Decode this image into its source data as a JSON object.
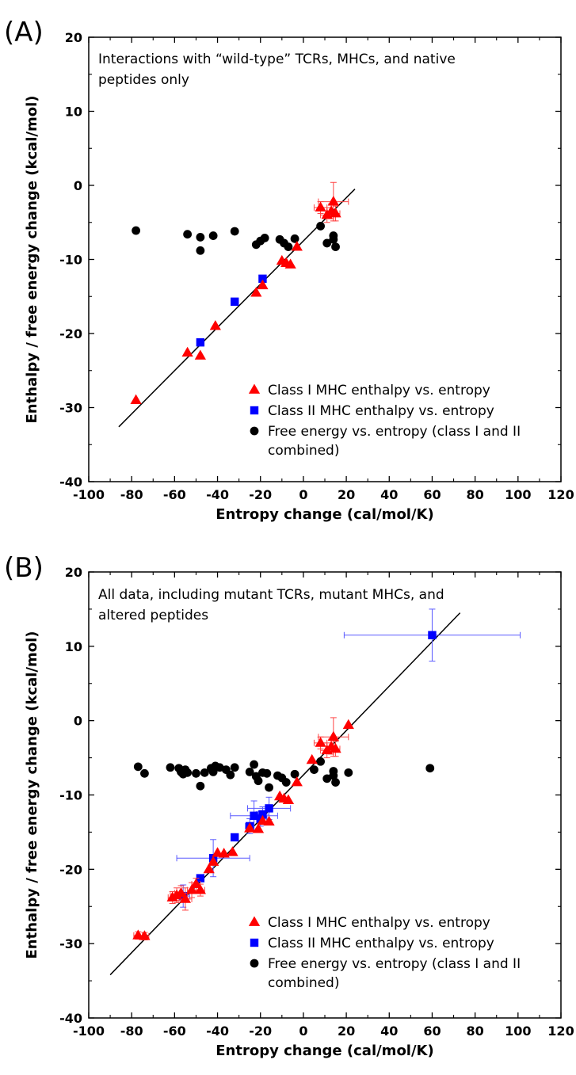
{
  "chart_data": [
    {
      "type": "scatter",
      "panel_label": "(A)",
      "note_lines": [
        "Interactions with “wild-type” TCRs, MHCs, and native",
        "peptides only"
      ],
      "xlabel": "Entropy change (cal/mol/K)",
      "ylabel": "Enthalpy / free energy change (kcal/mol)",
      "xlim": [
        -100,
        120
      ],
      "ylim": [
        -40,
        20
      ],
      "xticks": [
        -100,
        -80,
        -60,
        -40,
        -20,
        0,
        20,
        40,
        60,
        80,
        100,
        120
      ],
      "yticks": [
        -40,
        -30,
        -20,
        -10,
        0,
        10,
        20
      ],
      "legend_position": "bottom-right",
      "fit_line": {
        "x": [
          -86,
          24
        ],
        "y": [
          -32.6,
          -0.5
        ]
      },
      "series": [
        {
          "name": "Class I MHC enthalpy vs. entropy",
          "marker": "triangle",
          "color": "#ff0000",
          "points": [
            {
              "x": -78,
              "y": -29
            },
            {
              "x": -54,
              "y": -22.6
            },
            {
              "x": -48,
              "y": -23
            },
            {
              "x": -41,
              "y": -19
            },
            {
              "x": -22,
              "y": -14.5
            },
            {
              "x": -19,
              "y": -13.5
            },
            {
              "x": -10,
              "y": -10.2
            },
            {
              "x": -8,
              "y": -10.5
            },
            {
              "x": -6,
              "y": -10.7
            },
            {
              "x": -3,
              "y": -8.3
            },
            {
              "x": 8,
              "y": -3,
              "xerr": 3,
              "yerr": 0.8
            },
            {
              "x": 11,
              "y": -4,
              "xerr": 3,
              "yerr": 1
            },
            {
              "x": 13,
              "y": -3.5,
              "xerr": 2,
              "yerr": 1
            },
            {
              "x": 14,
              "y": -2.2,
              "xerr": 7,
              "yerr": 2.6
            },
            {
              "x": 15,
              "y": -3.8,
              "xerr": 2,
              "yerr": 1
            }
          ]
        },
        {
          "name": "Class II MHC enthalpy vs. entropy",
          "marker": "square",
          "color": "#0000ff",
          "points": [
            {
              "x": -48,
              "y": -21.2
            },
            {
              "x": -32,
              "y": -15.7
            },
            {
              "x": -19,
              "y": -12.6
            }
          ]
        },
        {
          "name": "Free energy vs. entropy (class I and II combined)",
          "marker": "circle",
          "color": "#000000",
          "points": [
            {
              "x": -78,
              "y": -6.1
            },
            {
              "x": -54,
              "y": -6.6
            },
            {
              "x": -48,
              "y": -7.0
            },
            {
              "x": -48,
              "y": -8.8
            },
            {
              "x": -42,
              "y": -6.8
            },
            {
              "x": -32,
              "y": -6.2
            },
            {
              "x": -22,
              "y": -8.0
            },
            {
              "x": -20,
              "y": -7.5
            },
            {
              "x": -18,
              "y": -7.1
            },
            {
              "x": -11,
              "y": -7.3
            },
            {
              "x": -9,
              "y": -7.8
            },
            {
              "x": -7,
              "y": -8.3
            },
            {
              "x": -4,
              "y": -7.2
            },
            {
              "x": 8,
              "y": -5.5
            },
            {
              "x": 11,
              "y": -7.8
            },
            {
              "x": 14,
              "y": -6.8
            },
            {
              "x": 14,
              "y": -7.3
            },
            {
              "x": 15,
              "y": -8.3
            }
          ]
        }
      ]
    },
    {
      "type": "scatter",
      "panel_label": "(B)",
      "note_lines": [
        "All data, including mutant TCRs, mutant MHCs, and",
        "altered peptides"
      ],
      "xlabel": "Entropy change (cal/mol/K)",
      "ylabel": "Enthalpy / free energy change (kcal/mol)",
      "xlim": [
        -100,
        120
      ],
      "ylim": [
        -40,
        20
      ],
      "xticks": [
        -100,
        -80,
        -60,
        -40,
        -20,
        0,
        20,
        40,
        60,
        80,
        100,
        120
      ],
      "yticks": [
        -40,
        -30,
        -20,
        -10,
        0,
        10,
        20
      ],
      "legend_position": "bottom-right",
      "fit_line": {
        "x": [
          -90,
          73
        ],
        "y": [
          -34.2,
          14.5
        ]
      },
      "series": [
        {
          "name": "Class I MHC enthalpy vs. entropy",
          "marker": "triangle",
          "color": "#ff0000",
          "points": [
            {
              "x": -77,
              "y": -28.9,
              "xerr": 2,
              "yerr": 0.5
            },
            {
              "x": -74,
              "y": -29.0,
              "xerr": 2,
              "yerr": 0.5
            },
            {
              "x": -61,
              "y": -23.8,
              "xerr": 2,
              "yerr": 0.8
            },
            {
              "x": -59,
              "y": -23.5,
              "xerr": 3,
              "yerr": 1
            },
            {
              "x": -57,
              "y": -23.2,
              "xerr": 3,
              "yerr": 1
            },
            {
              "x": -55,
              "y": -24.0,
              "xerr": 3,
              "yerr": 1.5
            },
            {
              "x": -52,
              "y": -22.8,
              "xerr": 2,
              "yerr": 1
            },
            {
              "x": -50,
              "y": -22.0,
              "xerr": 2,
              "yerr": 0.8
            },
            {
              "x": -48,
              "y": -22.8,
              "xerr": 2,
              "yerr": 0.8
            },
            {
              "x": -44,
              "y": -20.0
            },
            {
              "x": -42,
              "y": -19.0
            },
            {
              "x": -40,
              "y": -17.8
            },
            {
              "x": -37,
              "y": -17.9
            },
            {
              "x": -33,
              "y": -17.7
            },
            {
              "x": -25,
              "y": -14.5
            },
            {
              "x": -21,
              "y": -14.6
            },
            {
              "x": -19,
              "y": -13.5
            },
            {
              "x": -16,
              "y": -13.6
            },
            {
              "x": -11,
              "y": -10.2
            },
            {
              "x": -9,
              "y": -10.5
            },
            {
              "x": -7,
              "y": -10.7
            },
            {
              "x": -3,
              "y": -8.3
            },
            {
              "x": 4,
              "y": -5.3
            },
            {
              "x": 8,
              "y": -3,
              "xerr": 3,
              "yerr": 0.8
            },
            {
              "x": 11,
              "y": -4,
              "xerr": 3,
              "yerr": 1
            },
            {
              "x": 13,
              "y": -3.5,
              "xerr": 2,
              "yerr": 1
            },
            {
              "x": 14,
              "y": -2.2,
              "xerr": 7,
              "yerr": 2.6
            },
            {
              "x": 15,
              "y": -3.8,
              "xerr": 2,
              "yerr": 1
            },
            {
              "x": 21,
              "y": -0.6
            }
          ]
        },
        {
          "name": "Class II MHC enthalpy vs. entropy",
          "marker": "square",
          "color": "#0000ff",
          "points": [
            {
              "x": 60,
              "y": 11.5,
              "xerr": 41,
              "yerr": 3.5
            },
            {
              "x": -56,
              "y": -23.6,
              "xerr": 3,
              "yerr": 1.5
            },
            {
              "x": -48,
              "y": -21.2
            },
            {
              "x": -42,
              "y": -18.5,
              "xerr": 17,
              "yerr": 2.5
            },
            {
              "x": -32,
              "y": -15.7
            },
            {
              "x": -25,
              "y": -14.2,
              "xerr": 2,
              "yerr": 1
            },
            {
              "x": -23,
              "y": -12.8,
              "xerr": 11,
              "yerr": 2
            },
            {
              "x": -20,
              "y": -13.2,
              "xerr": 3,
              "yerr": 1
            },
            {
              "x": -19,
              "y": -12.6,
              "xerr": 3,
              "yerr": 1
            },
            {
              "x": -16,
              "y": -11.8,
              "xerr": 10,
              "yerr": 1.5
            }
          ]
        },
        {
          "name": "Free energy vs. entropy (class I and II combined)",
          "marker": "circle",
          "color": "#000000",
          "points": [
            {
              "x": -77,
              "y": -6.2
            },
            {
              "x": -74,
              "y": -7.1
            },
            {
              "x": -62,
              "y": -6.3
            },
            {
              "x": -58,
              "y": -6.4
            },
            {
              "x": -57,
              "y": -6.9
            },
            {
              "x": -56,
              "y": -7.2
            },
            {
              "x": -55,
              "y": -6.6
            },
            {
              "x": -54,
              "y": -7.0
            },
            {
              "x": -50,
              "y": -7.1
            },
            {
              "x": -48,
              "y": -8.8
            },
            {
              "x": -46,
              "y": -7.0
            },
            {
              "x": -43,
              "y": -6.4
            },
            {
              "x": -42,
              "y": -6.9
            },
            {
              "x": -41,
              "y": -6.1
            },
            {
              "x": -39,
              "y": -6.3
            },
            {
              "x": -36,
              "y": -6.6
            },
            {
              "x": -34,
              "y": -7.3
            },
            {
              "x": -32,
              "y": -6.3
            },
            {
              "x": -25,
              "y": -6.9
            },
            {
              "x": -23,
              "y": -5.9
            },
            {
              "x": -22,
              "y": -7.5
            },
            {
              "x": -21,
              "y": -8.1
            },
            {
              "x": -19,
              "y": -7.0
            },
            {
              "x": -17,
              "y": -7.1
            },
            {
              "x": -16,
              "y": -9.0
            },
            {
              "x": -12,
              "y": -7.4
            },
            {
              "x": -10,
              "y": -7.7
            },
            {
              "x": -8,
              "y": -8.3
            },
            {
              "x": -4,
              "y": -7.2
            },
            {
              "x": 5,
              "y": -6.6
            },
            {
              "x": 8,
              "y": -5.5
            },
            {
              "x": 11,
              "y": -7.8
            },
            {
              "x": 14,
              "y": -6.8
            },
            {
              "x": 14,
              "y": -7.4
            },
            {
              "x": 15,
              "y": -8.3
            },
            {
              "x": 21,
              "y": -7.0
            },
            {
              "x": 59,
              "y": -6.4
            }
          ]
        }
      ]
    }
  ]
}
